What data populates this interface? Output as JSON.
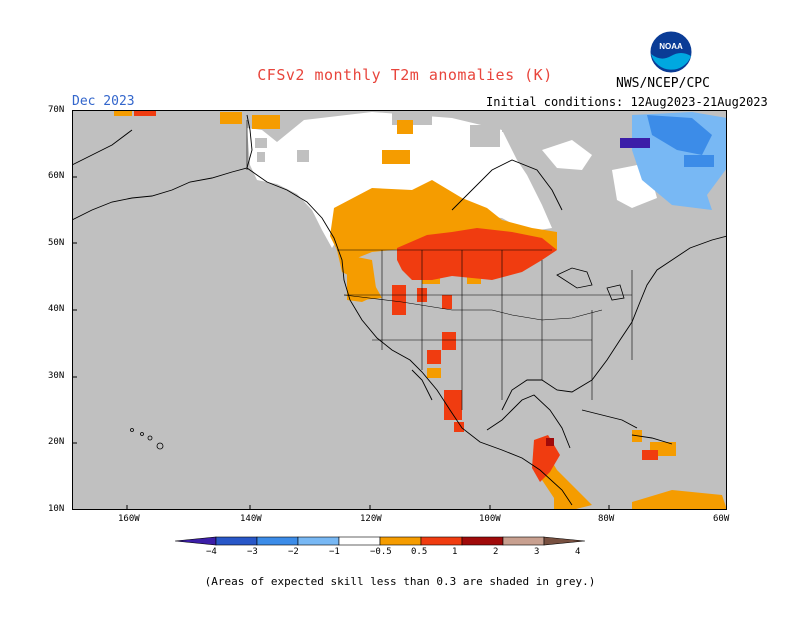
{
  "title": "CFSv2 monthly T2m anomalies (K)",
  "period": "Dec 2023",
  "initial_conditions": "Initial conditions: 12Aug2023-21Aug2023",
  "agency": "NWS/NCEP/CPC",
  "logo_text": "NOAA",
  "lat_labels": [
    "70N",
    "60N",
    "50N",
    "40N",
    "30N",
    "20N",
    "10N"
  ],
  "lon_labels": [
    "160W",
    "140W",
    "120W",
    "100W",
    "80W",
    "60W"
  ],
  "colorbar": {
    "labels": [
      "−4",
      "−3",
      "−2",
      "−1",
      "−0.5",
      "0.5",
      "1",
      "2",
      "3",
      "4"
    ],
    "colors": [
      "#3c1ea8",
      "#2857c8",
      "#3c8ce8",
      "#78b8f4",
      "#ffffff",
      "#f59c00",
      "#f03c10",
      "#a00a0a",
      "#c8a090",
      "#785040"
    ]
  },
  "footnote": "(Areas of expected skill less than 0.3 are shaded in grey.)",
  "colors": {
    "skill_grey": "#c0c0c0",
    "white": "#ffffff",
    "orange": "#f59c00",
    "red": "#f03c10",
    "dark_red": "#a00a0a",
    "light_blue": "#78b8f4",
    "blue": "#3c8ce8",
    "purple": "#3c1ea8"
  }
}
